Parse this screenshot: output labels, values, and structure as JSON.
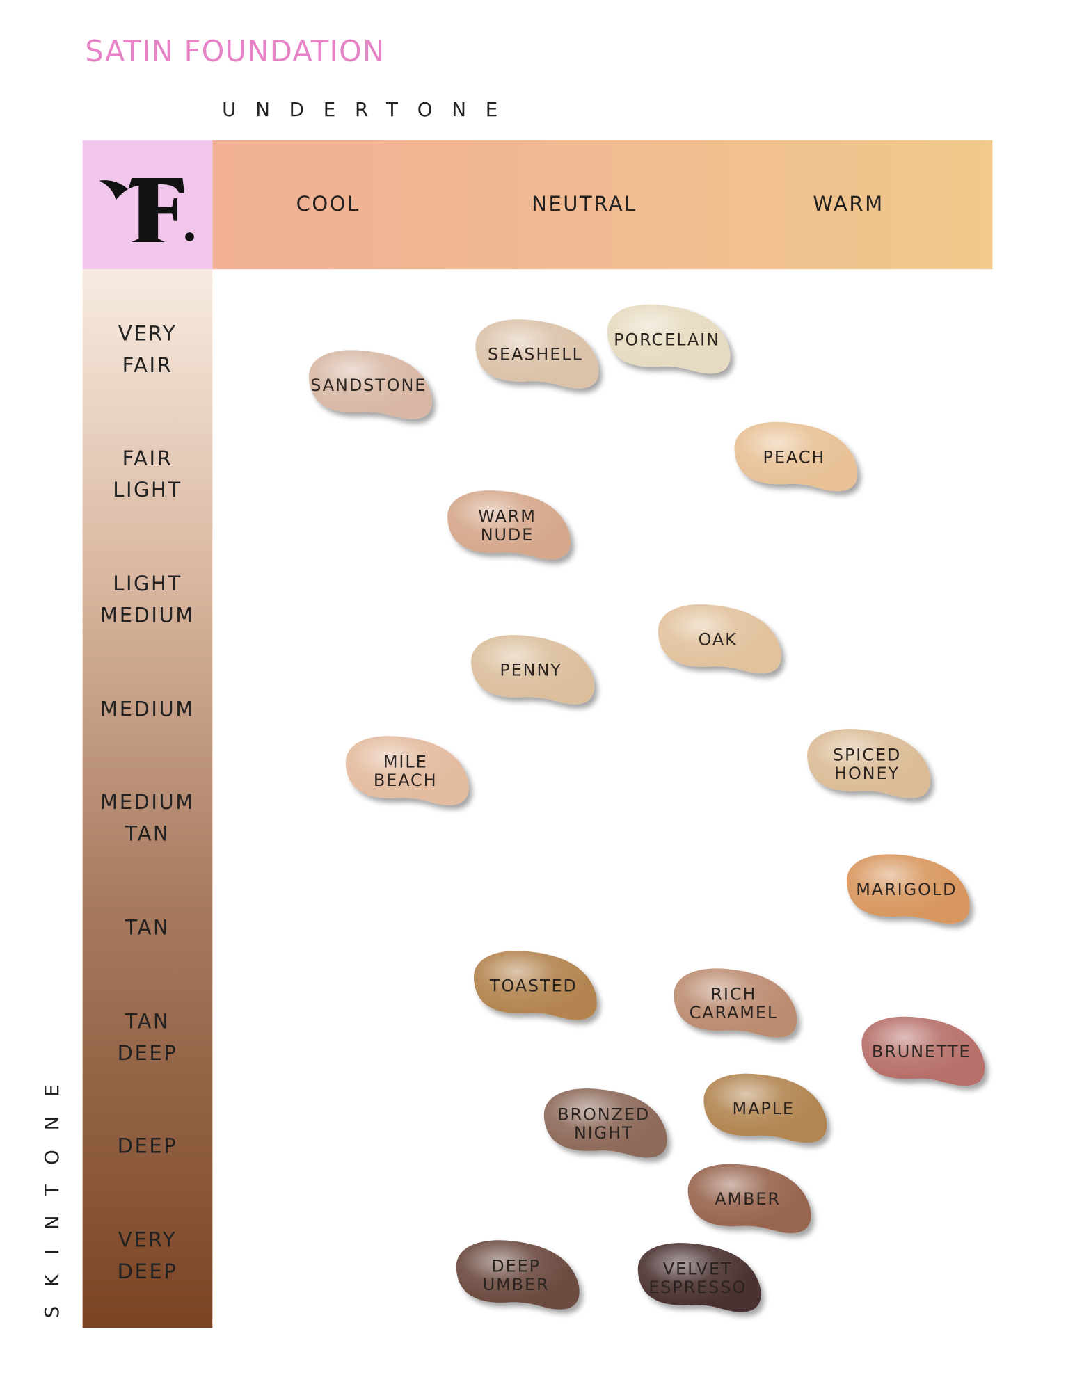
{
  "header": {
    "title": "SATIN FOUNDATION",
    "undertone_label": "UNDERTONE",
    "columns": [
      "COOL",
      "NEUTRAL",
      "WARM"
    ]
  },
  "skintone_label": "SKINTONE",
  "rows": [
    [
      "VERY",
      "FAIR"
    ],
    [
      "FAIR",
      "LIGHT"
    ],
    [
      "LIGHT",
      "MEDIUM"
    ],
    [
      "MEDIUM"
    ],
    [
      "MEDIUM",
      "TAN"
    ],
    [
      "TAN"
    ],
    [
      "TAN",
      "DEEP"
    ],
    [
      "DEEP"
    ],
    [
      "VERY",
      "DEEP"
    ]
  ],
  "swatches": [
    {
      "lines": [
        "SANDSTONE"
      ],
      "color": "#d8b8a5"
    },
    {
      "lines": [
        "SEASHELL"
      ],
      "color": "#dbc2a9"
    },
    {
      "lines": [
        "PORCELAIN"
      ],
      "color": "#e6dbc0"
    },
    {
      "lines": [
        "PEACH"
      ],
      "color": "#e8c196"
    },
    {
      "lines": [
        "WARM",
        "NUDE"
      ],
      "color": "#d5a88c"
    },
    {
      "lines": [
        "OAK"
      ],
      "color": "#e1c29d"
    },
    {
      "lines": [
        "PENNY"
      ],
      "color": "#dbbf9d"
    },
    {
      "lines": [
        "MILE",
        "BEACH"
      ],
      "color": "#e3bb9f"
    },
    {
      "lines": [
        "SPICED",
        "HONEY"
      ],
      "color": "#dbbc97"
    },
    {
      "lines": [
        "MARIGOLD"
      ],
      "color": "#d8975f"
    },
    {
      "lines": [
        "TOASTED"
      ],
      "color": "#b3844f"
    },
    {
      "lines": [
        "RICH",
        "CARAMEL"
      ],
      "color": "#bc8c71"
    },
    {
      "lines": [
        "BRUNETTE"
      ],
      "color": "#b7706a"
    },
    {
      "lines": [
        "BRONZED",
        "NIGHT"
      ],
      "color": "#8d6a5a"
    },
    {
      "lines": [
        "MAPLE"
      ],
      "color": "#b28551"
    },
    {
      "lines": [
        "AMBER"
      ],
      "color": "#98654f"
    },
    {
      "lines": [
        "DEEP",
        "UMBER"
      ],
      "color": "#6c4b3f"
    },
    {
      "lines": [
        "VELVET",
        "ESPRESSO"
      ],
      "color": "#4c3230"
    }
  ]
}
